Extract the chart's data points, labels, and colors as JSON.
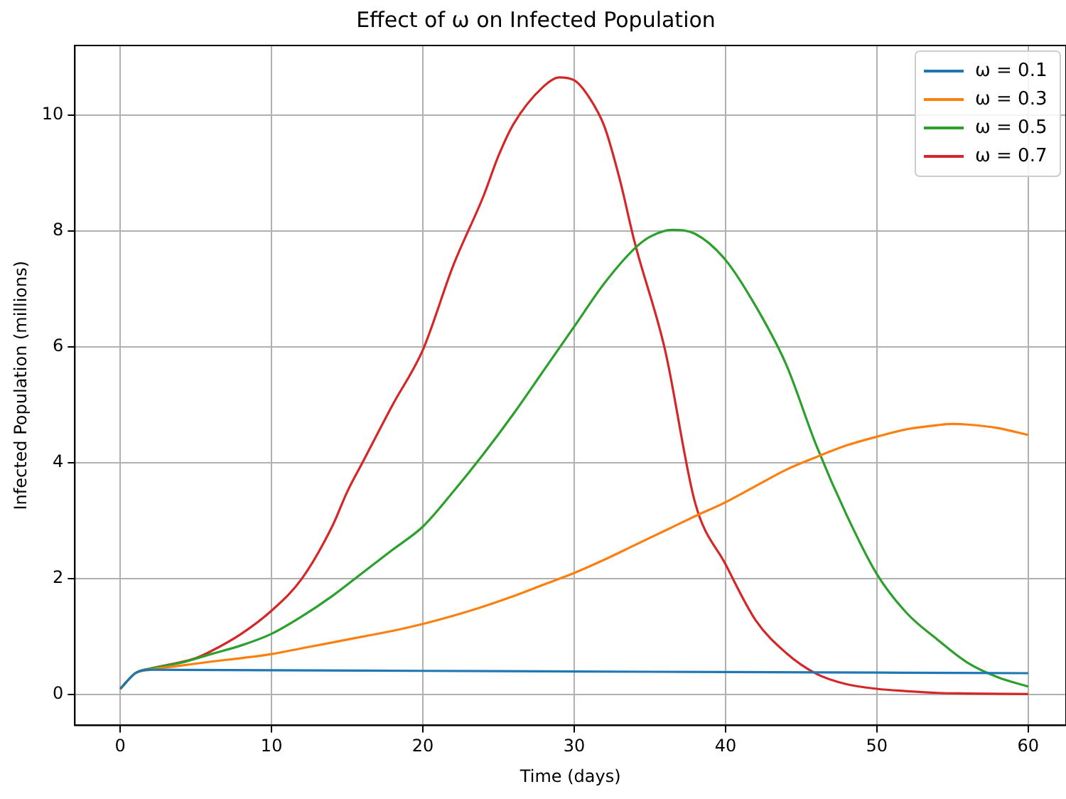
{
  "chart_data": {
    "type": "line",
    "title": "Effect of ω on Infected Population",
    "xlabel": "Time (days)",
    "ylabel": "Infected Population (millions)",
    "xlim": [
      -3,
      62.5
    ],
    "ylim": [
      -0.53,
      11.2
    ],
    "xticks": [
      0,
      10,
      20,
      30,
      40,
      50,
      60
    ],
    "yticks": [
      0,
      2,
      4,
      6,
      8,
      10
    ],
    "grid": true,
    "legend": "top right",
    "marker": "none",
    "line_style": "solid",
    "series": [
      {
        "name": "ω = 0.1",
        "color": "#1f77b4",
        "x": [
          0,
          1,
          2,
          10,
          20,
          30,
          40,
          50,
          60
        ],
        "values": [
          0.1,
          0.37,
          0.43,
          0.42,
          0.41,
          0.4,
          0.39,
          0.38,
          0.37
        ]
      },
      {
        "name": "ω = 0.3",
        "color": "#ff7f0e",
        "x": [
          0,
          1,
          2,
          4,
          6,
          8,
          10,
          12,
          14,
          16,
          18,
          20,
          22,
          24,
          26,
          28,
          30,
          32,
          34,
          36,
          38,
          40,
          42,
          44,
          46,
          48,
          50,
          52,
          54,
          55,
          56,
          58,
          60
        ],
        "values": [
          0.1,
          0.37,
          0.43,
          0.5,
          0.57,
          0.63,
          0.7,
          0.8,
          0.9,
          1.0,
          1.1,
          1.22,
          1.36,
          1.52,
          1.7,
          1.9,
          2.1,
          2.33,
          2.58,
          2.83,
          3.08,
          3.32,
          3.6,
          3.88,
          4.1,
          4.3,
          4.45,
          4.58,
          4.65,
          4.67,
          4.66,
          4.6,
          4.48
        ]
      },
      {
        "name": "ω = 0.5",
        "color": "#2ca02c",
        "x": [
          0,
          1,
          2,
          4,
          6,
          8,
          10,
          12,
          14,
          16,
          18,
          20,
          22,
          24,
          26,
          28,
          30,
          32,
          34,
          35,
          36.5,
          38,
          40,
          42,
          44,
          46,
          48,
          50,
          52,
          54,
          56,
          58,
          60
        ],
        "values": [
          0.1,
          0.37,
          0.45,
          0.55,
          0.7,
          0.85,
          1.05,
          1.35,
          1.7,
          2.1,
          2.5,
          2.9,
          3.5,
          4.15,
          4.85,
          5.6,
          6.35,
          7.1,
          7.7,
          7.9,
          8.02,
          7.95,
          7.5,
          6.7,
          5.7,
          4.3,
          3.1,
          2.08,
          1.4,
          0.95,
          0.55,
          0.3,
          0.14
        ]
      },
      {
        "name": "ω = 0.7",
        "color": "#d62728",
        "x": [
          0,
          1,
          2,
          4,
          5,
          6,
          8,
          10,
          12,
          14,
          15,
          16,
          18,
          20,
          22,
          24,
          25,
          26,
          28,
          29,
          30,
          31,
          32,
          33,
          34,
          36,
          38,
          40,
          42,
          44,
          46,
          48,
          50,
          52,
          54,
          56,
          60
        ],
        "values": [
          0.1,
          0.37,
          0.45,
          0.56,
          0.63,
          0.75,
          1.05,
          1.45,
          2.0,
          2.9,
          3.5,
          4.0,
          5.0,
          5.95,
          7.4,
          8.6,
          9.3,
          9.85,
          10.5,
          10.65,
          10.6,
          10.3,
          9.8,
          8.9,
          7.8,
          5.95,
          3.3,
          2.25,
          1.28,
          0.72,
          0.36,
          0.18,
          0.1,
          0.06,
          0.03,
          0.02,
          0.01
        ]
      }
    ]
  }
}
